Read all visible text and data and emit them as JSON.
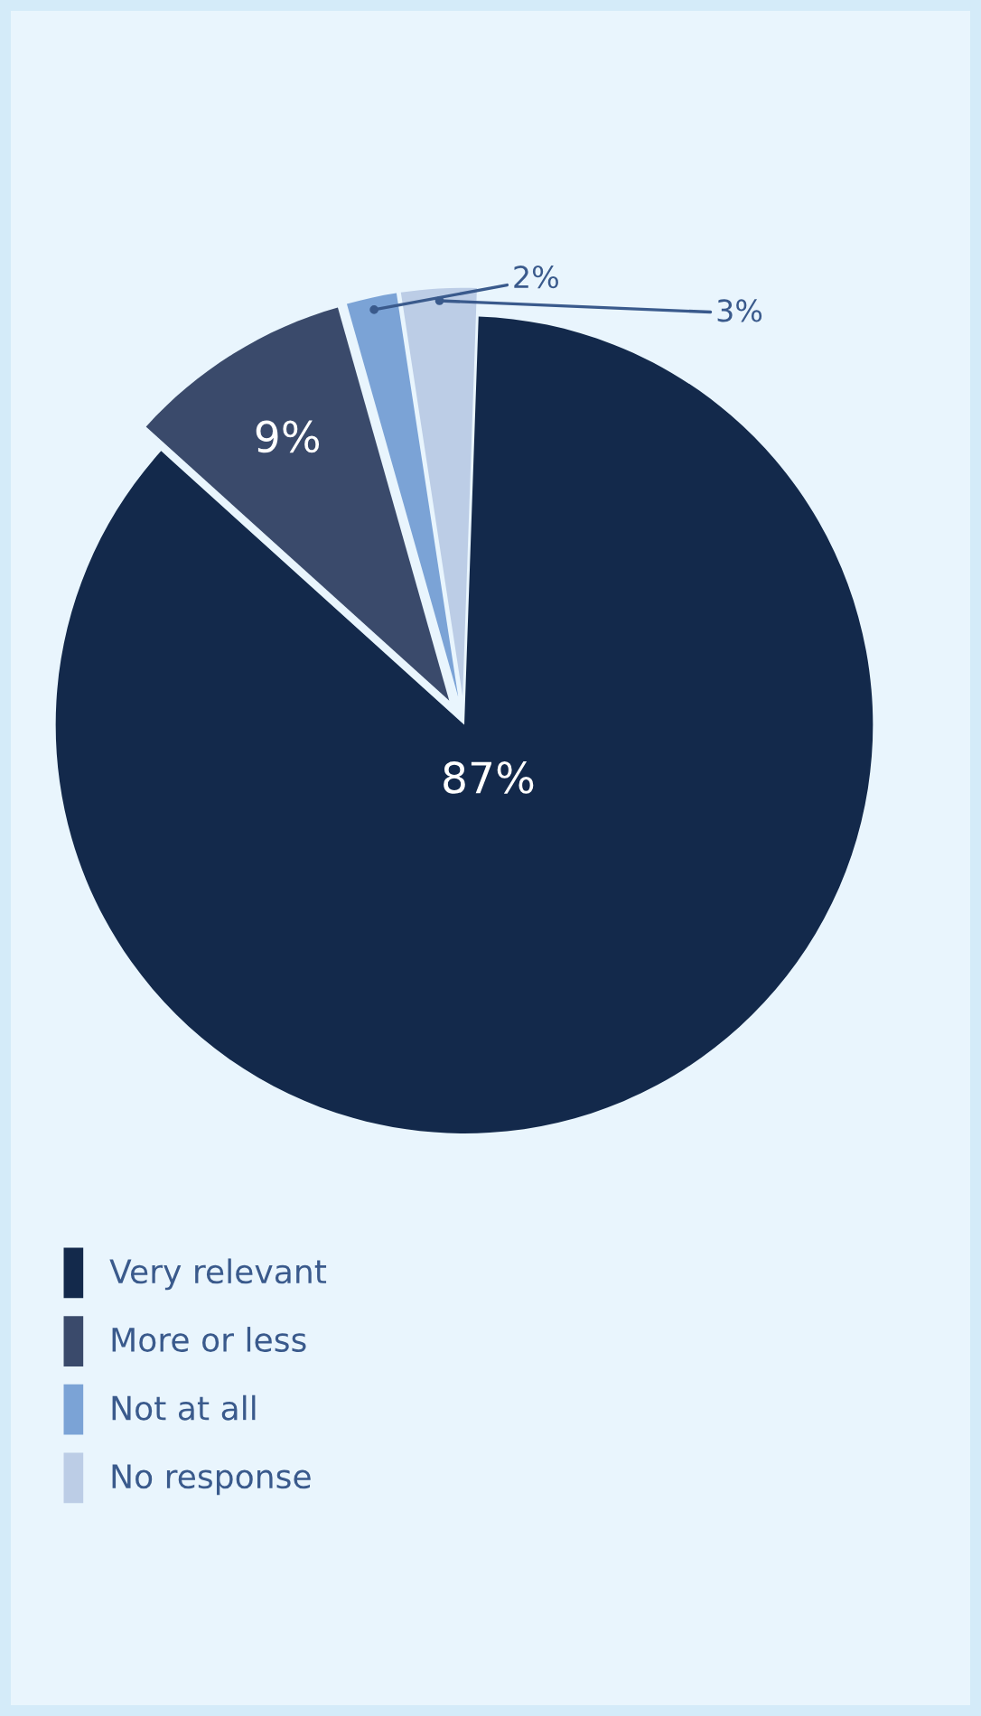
{
  "chart_data": {
    "type": "pie",
    "categories": [
      "Very relevant",
      "More or less",
      "Not at all",
      "No response"
    ],
    "values": [
      87,
      9,
      2,
      3
    ],
    "colors": [
      "#13294b",
      "#3a4a6b",
      "#7ba3d6",
      "#bccde6"
    ],
    "value_labels": [
      "87%",
      "9%",
      "2%",
      "3%"
    ],
    "legend": "bottom left"
  }
}
